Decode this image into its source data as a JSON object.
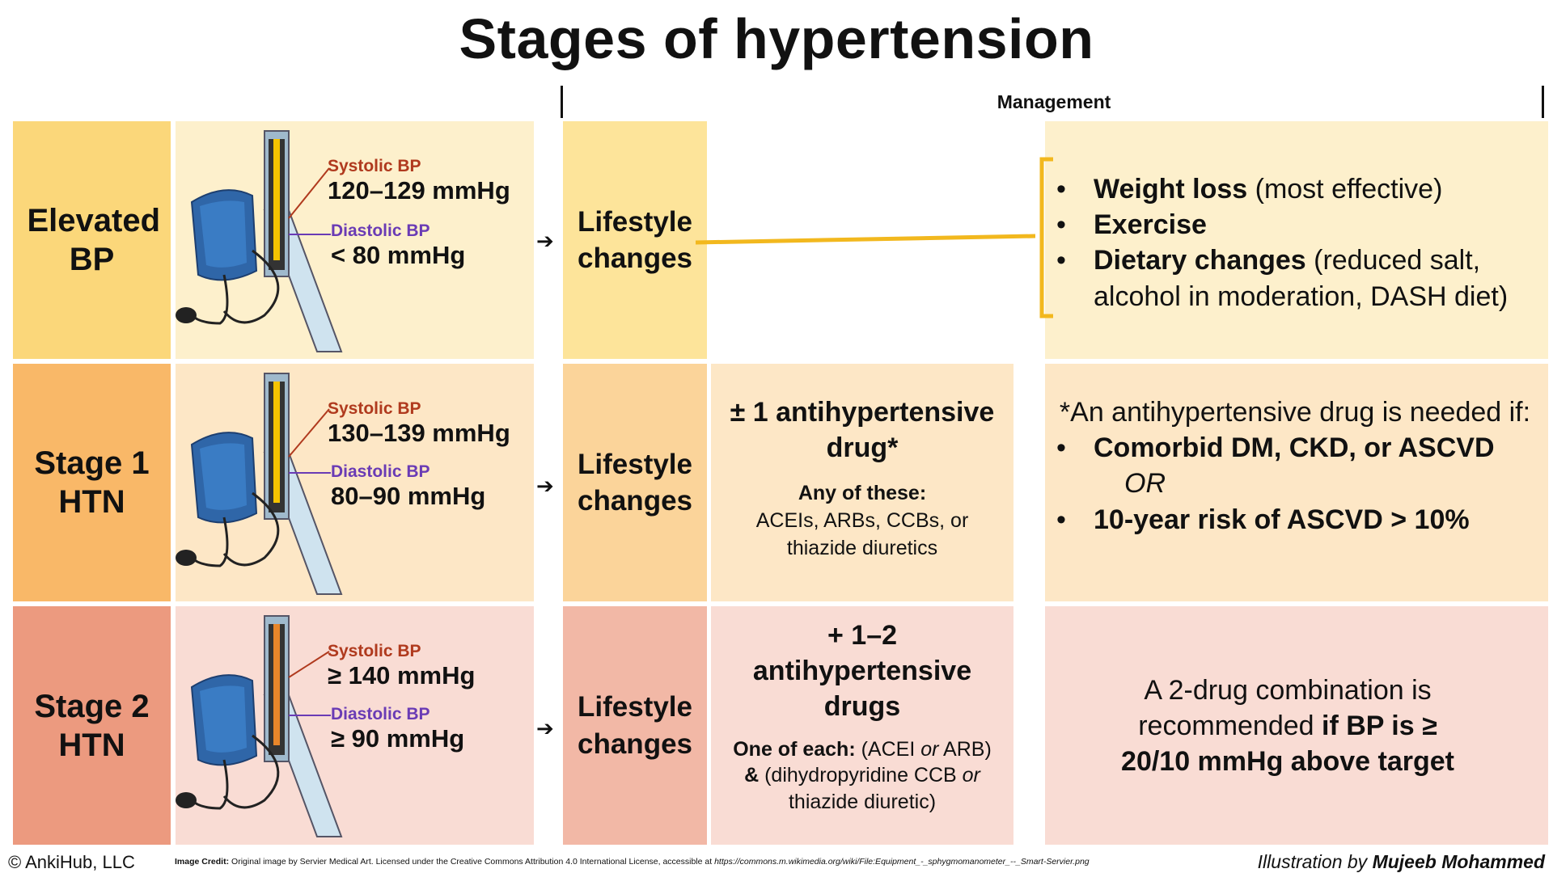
{
  "title": "Stages of hypertension",
  "management_label": "Management",
  "rows": [
    {
      "stage": "Elevated BP",
      "systolic_label": "Systolic BP",
      "systolic_value": "120–129 mmHg",
      "diastolic_label": "Diastolic BP",
      "diastolic_value": "< 80 mmHg",
      "lifestyle": "Lifestyle changes"
    },
    {
      "stage": "Stage 1 HTN",
      "systolic_label": "Systolic BP",
      "systolic_value": "130–139 mmHg",
      "diastolic_label": "Diastolic BP",
      "diastolic_value": "80–90 mmHg",
      "lifestyle": "Lifestyle changes",
      "drug_main": "± 1 antihypertensive drug*",
      "drug_sub_bold": "Any of these:",
      "drug_sub": "ACEIs, ARBs, CCBs, or thiazide diuretics"
    },
    {
      "stage": "Stage 2 HTN",
      "systolic_label": "Systolic BP",
      "systolic_value": "≥ 140 mmHg",
      "diastolic_label": "Diastolic BP",
      "diastolic_value": "≥ 90 mmHg",
      "lifestyle": "Lifestyle changes",
      "drug_main": "+ 1–2 antihypertensive drugs",
      "drug_sub_bold": "One of each:",
      "drug_sub_1": " (ACEI ",
      "drug_sub_or1": "or",
      "drug_sub_2": " ARB) ",
      "drug_sub_amp": "&",
      "drug_sub_3": " (dihydropyridine CCB ",
      "drug_sub_or2": "or",
      "drug_sub_4": " thiazide diuretic)"
    }
  ],
  "lifestyle_info": [
    {
      "bold": "Weight loss",
      "rest": " (most effective)"
    },
    {
      "bold": "Exercise",
      "rest": ""
    },
    {
      "bold": "Dietary changes",
      "rest": " (reduced salt, alcohol in moderation, DASH diet)"
    }
  ],
  "stage1_info": {
    "intro": "*An antihypertensive drug is needed if:",
    "item1": "Comorbid DM, CKD, or ASCVD",
    "or": "OR",
    "item2": "10-year risk of ASCVD > 10%"
  },
  "stage2_info": {
    "text": "A 2-drug combination is recommended ",
    "bold": "if BP is ≥ 20/10 mmHg above target"
  },
  "footer": {
    "copyright": "© AnkiHub, LLC",
    "credit_label": "Image Credit:",
    "credit_text": " Original image by Servier Medical Art. Licensed under the Creative Commons Attribution 4.0 International License, accessible at ",
    "credit_url": "https://commons.m.wikimedia.org/wiki/File:Equipment_-_sphygmomanometer_--_Smart-Servier.png",
    "illustration_by": "Illustration by ",
    "author": "Mujeeb Mohammed"
  },
  "colors": {
    "row1_stage": "#fbd77a",
    "row1_light": "#fdf0cc",
    "row1_life": "#fde49a",
    "row2_stage": "#f9b868",
    "row2_light": "#fde7c6",
    "row2_life": "#fbd49a",
    "row3_stage": "#ec9a7f",
    "row3_light": "#f9dcd4",
    "row3_life": "#f2b8a6",
    "bracket": "#f2b81e"
  }
}
